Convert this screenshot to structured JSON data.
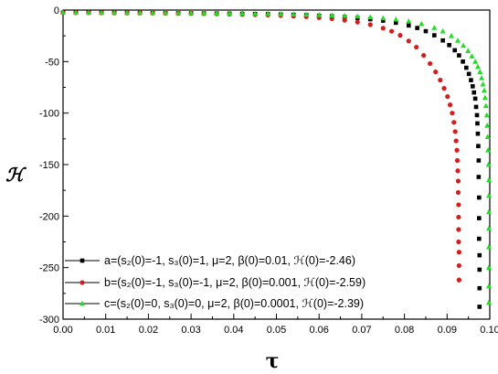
{
  "chart_data": {
    "type": "scatter",
    "title": "",
    "xlabel": "τ",
    "ylabel": "ℋ",
    "xlim": [
      0.0,
      0.1
    ],
    "ylim": [
      -300,
      0
    ],
    "x_ticks": [
      "0.00",
      "0.01",
      "0.02",
      "0.03",
      "0.04",
      "0.05",
      "0.06",
      "0.07",
      "0.08",
      "0.09",
      "0.10"
    ],
    "y_ticks": [
      "0",
      "-50",
      "-100",
      "-150",
      "-200",
      "-250",
      "-300"
    ],
    "legend_position": "bottom-left",
    "series": [
      {
        "name": "a=(s₂(0)=-1, s₃(0)=1, μ=2, β(0)=0.01, ℋ(0)=-2.46)",
        "color": "#000000",
        "marker": "square",
        "x": [
          0.0,
          0.003,
          0.006,
          0.009,
          0.012,
          0.015,
          0.018,
          0.021,
          0.024,
          0.027,
          0.03,
          0.033,
          0.036,
          0.039,
          0.042,
          0.045,
          0.048,
          0.051,
          0.054,
          0.057,
          0.06,
          0.063,
          0.066,
          0.069,
          0.072,
          0.075,
          0.078,
          0.081,
          0.083,
          0.085,
          0.087,
          0.089,
          0.0905,
          0.0918,
          0.0928,
          0.0937,
          0.0945,
          0.0951,
          0.0956,
          0.096,
          0.0963,
          0.0966,
          0.0968,
          0.097,
          0.0971,
          0.0972,
          0.0973,
          0.0974,
          0.0974,
          0.0975,
          0.0975,
          0.0975,
          0.0976,
          0.0976,
          0.0976,
          0.0976
        ],
        "y": [
          -2.46,
          -2.5,
          -2.5,
          -2.6,
          -2.6,
          -2.7,
          -2.7,
          -2.8,
          -2.9,
          -3.0,
          -3.1,
          -3.2,
          -3.3,
          -3.4,
          -3.6,
          -3.8,
          -4.0,
          -4.3,
          -4.6,
          -5.0,
          -5.5,
          -6.0,
          -6.8,
          -7.7,
          -8.9,
          -10.3,
          -12.3,
          -15.0,
          -17.4,
          -20.5,
          -24.5,
          -29.5,
          -34,
          -39,
          -44,
          -50,
          -56,
          -62,
          -68,
          -74,
          -80,
          -86,
          -94,
          -102,
          -110,
          -120,
          -132,
          -146,
          -162,
          -182,
          -202,
          -222,
          -238,
          -252,
          -270,
          -288
        ]
      },
      {
        "name": "b=(s₂(0)=-1, s₃(0)=-1, μ=2, β(0)=0.001, ℋ(0)=-2.59)",
        "color": "#d21e1e",
        "marker": "circle",
        "x": [
          0.0,
          0.003,
          0.006,
          0.009,
          0.012,
          0.015,
          0.018,
          0.021,
          0.024,
          0.027,
          0.03,
          0.033,
          0.036,
          0.039,
          0.042,
          0.045,
          0.048,
          0.051,
          0.054,
          0.057,
          0.06,
          0.063,
          0.066,
          0.069,
          0.072,
          0.075,
          0.077,
          0.079,
          0.081,
          0.0828,
          0.0845,
          0.086,
          0.0873,
          0.0884,
          0.0893,
          0.0901,
          0.0907,
          0.0912,
          0.0916,
          0.0919,
          0.0921,
          0.0923,
          0.0924,
          0.0925,
          0.0926,
          0.0926,
          0.0927,
          0.0927,
          0.0927,
          0.0927,
          0.0928,
          0.0928,
          0.0928,
          0.0928
        ],
        "y": [
          -2.59,
          -2.6,
          -2.6,
          -2.7,
          -2.8,
          -2.9,
          -2.9,
          -3.0,
          -3.1,
          -3.2,
          -3.3,
          -3.5,
          -3.7,
          -3.9,
          -4.2,
          -4.5,
          -4.8,
          -5.3,
          -5.9,
          -6.5,
          -7.4,
          -8.4,
          -9.9,
          -11.7,
          -14.2,
          -17.6,
          -20.6,
          -24.5,
          -30,
          -36,
          -44,
          -52,
          -60,
          -68,
          -76,
          -84,
          -92,
          -100,
          -109,
          -118,
          -127,
          -136,
          -146,
          -156,
          -166,
          -177,
          -189,
          -201,
          -213,
          -225,
          -235,
          -248,
          -262,
          -262
        ]
      },
      {
        "name": "c=(s₂(0)=0, s₃(0)=0, μ=2, β(0)=0.0001, ℋ(0)=-2.39)",
        "color": "#22dd22",
        "marker": "triangle",
        "x": [
          0.0,
          0.003,
          0.006,
          0.009,
          0.012,
          0.015,
          0.018,
          0.021,
          0.024,
          0.027,
          0.03,
          0.033,
          0.036,
          0.039,
          0.042,
          0.045,
          0.048,
          0.051,
          0.054,
          0.057,
          0.06,
          0.063,
          0.066,
          0.069,
          0.072,
          0.075,
          0.078,
          0.081,
          0.084,
          0.087,
          0.089,
          0.091,
          0.0925,
          0.0938,
          0.0949,
          0.0958,
          0.0966,
          0.0972,
          0.0977,
          0.0981,
          0.0984,
          0.0987,
          0.0989,
          0.0991,
          0.0993,
          0.0994,
          0.0995,
          0.0996,
          0.0997,
          0.0998,
          0.0998,
          0.0999,
          0.0999,
          0.0999,
          0.1,
          0.1,
          0.1
        ],
        "y": [
          -2.39,
          -2.4,
          -2.4,
          -2.5,
          -2.5,
          -2.6,
          -2.6,
          -2.7,
          -2.7,
          -2.8,
          -2.9,
          -3.0,
          -3.1,
          -3.2,
          -3.3,
          -3.5,
          -3.6,
          -3.8,
          -4.1,
          -4.3,
          -4.6,
          -5.0,
          -5.5,
          -6.1,
          -6.8,
          -7.8,
          -9.1,
          -10.9,
          -13.4,
          -17.2,
          -20.5,
          -25,
          -29.6,
          -34.5,
          -39.6,
          -44.8,
          -50,
          -55,
          -60,
          -66,
          -72,
          -78,
          -85,
          -93,
          -102,
          -112,
          -123,
          -136,
          -150,
          -165,
          -180,
          -196,
          -212,
          -230,
          -250,
          -268,
          -284
        ]
      }
    ]
  }
}
